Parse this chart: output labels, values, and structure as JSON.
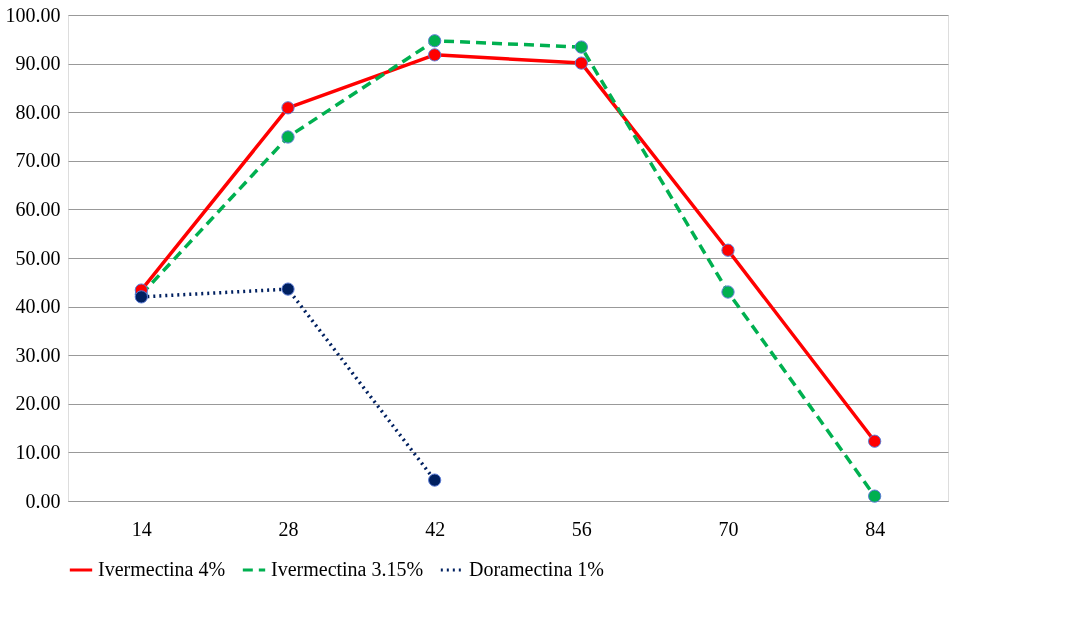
{
  "chart_data": {
    "type": "line",
    "categories": [
      "14",
      "28",
      "42",
      "56",
      "70",
      "84"
    ],
    "series": [
      {
        "name": "Ivermectina 4%",
        "color": "#ff0000",
        "line_style": "solid",
        "values": [
          43.4,
          80.9,
          91.8,
          90.1,
          51.6,
          12.3
        ]
      },
      {
        "name": "Ivermectina 3.15%",
        "color": "#00b050",
        "line_style": "dashed",
        "values": [
          42.5,
          74.9,
          94.7,
          93.4,
          43.0,
          1.0
        ]
      },
      {
        "name": "Doramectina 1%",
        "color": "#002060",
        "line_style": "dotted",
        "values": [
          42.0,
          43.6,
          4.3,
          null,
          null,
          null
        ]
      }
    ],
    "ylim": [
      0,
      100
    ],
    "yticks": [
      {
        "value": 0,
        "label": "0.00"
      },
      {
        "value": 10,
        "label": "10.00"
      },
      {
        "value": 20,
        "label": "20.00"
      },
      {
        "value": 30,
        "label": "30.00"
      },
      {
        "value": 40,
        "label": "40.00"
      },
      {
        "value": 50,
        "label": "50.00"
      },
      {
        "value": 60,
        "label": "60.00"
      },
      {
        "value": 70,
        "label": "70.00"
      },
      {
        "value": 80,
        "label": "80.00"
      },
      {
        "value": 90,
        "label": "90.00"
      },
      {
        "value": 100,
        "label": "100.00"
      }
    ],
    "grid": "y",
    "legend": "bottom",
    "marker": "circle"
  }
}
